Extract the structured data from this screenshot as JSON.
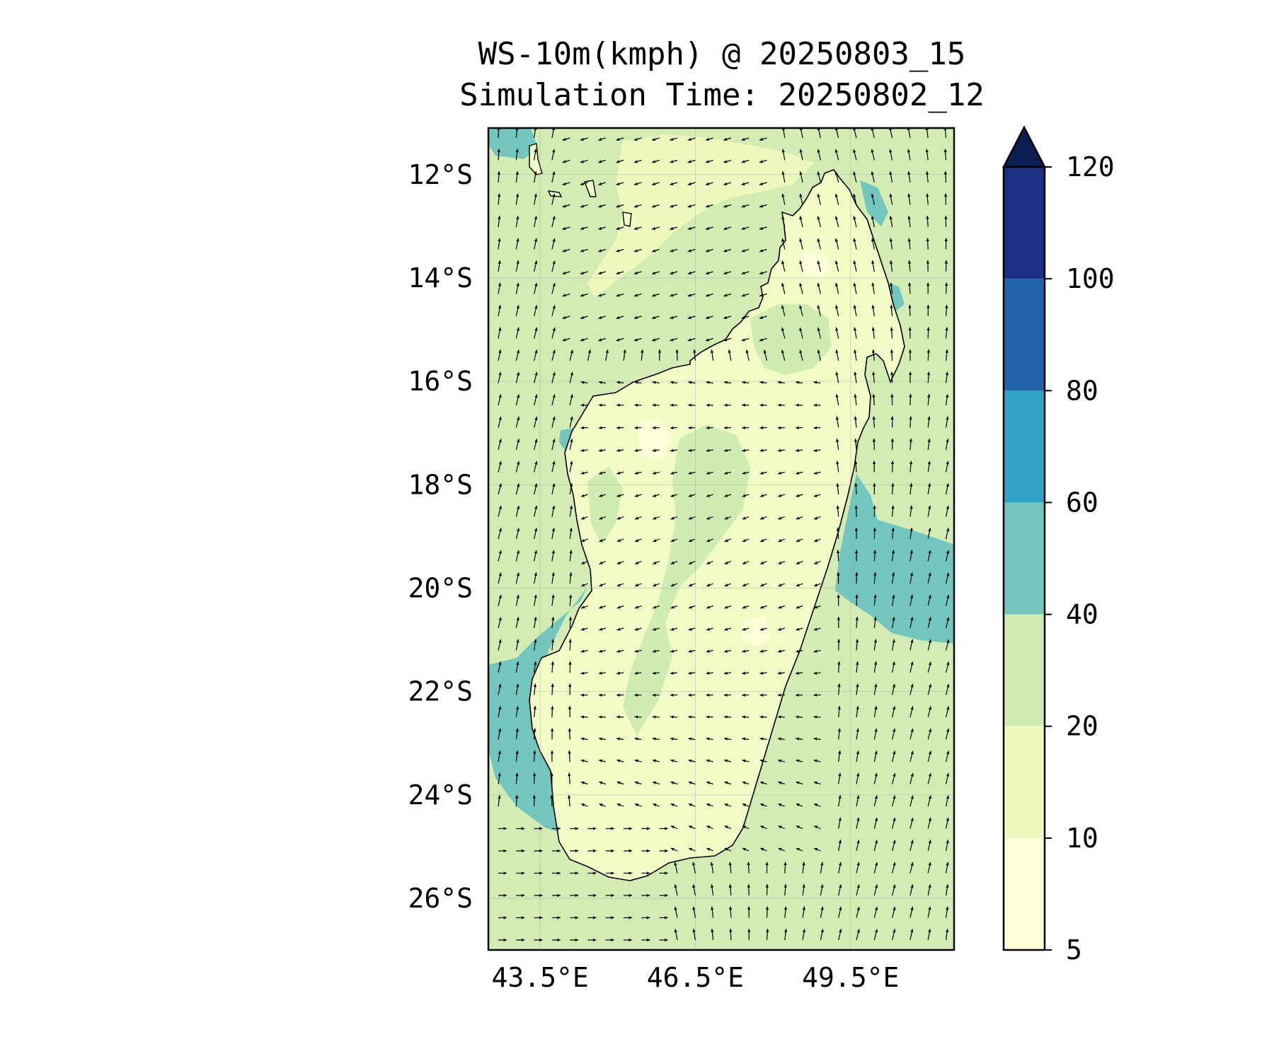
{
  "title": {
    "line1": "WS-10m(kmph) @ 20250803_15",
    "line2": "Simulation Time: 20250802_12"
  },
  "map": {
    "lon_range": [
      42.5,
      51.5
    ],
    "lat_range": [
      -27,
      -11.1
    ],
    "lon_ticks": [
      {
        "value": 43.5,
        "label": "43.5°E"
      },
      {
        "value": 46.5,
        "label": "46.5°E"
      },
      {
        "value": 49.5,
        "label": "49.5°E"
      }
    ],
    "lat_ticks": [
      {
        "value": -12,
        "label": "12°S"
      },
      {
        "value": -14,
        "label": "14°S"
      },
      {
        "value": -16,
        "label": "16°S"
      },
      {
        "value": -18,
        "label": "18°S"
      },
      {
        "value": -20,
        "label": "20°S"
      },
      {
        "value": -22,
        "label": "22°S"
      },
      {
        "value": -24,
        "label": "24°S"
      },
      {
        "value": -26,
        "label": "26°S"
      }
    ],
    "ocean_fill": "#d2ecb4",
    "land_fill": "#f2fac6",
    "coast_color": "#000000",
    "wind_vectors": "black quiver arrows, predominantly southerly flow along the coasts"
  },
  "colorbar": {
    "levels": [
      {
        "value": 5,
        "label": "5"
      },
      {
        "value": 10,
        "label": "10"
      },
      {
        "value": 20,
        "label": "20"
      },
      {
        "value": 40,
        "label": "40"
      },
      {
        "value": 60,
        "label": "60"
      },
      {
        "value": 80,
        "label": "80"
      },
      {
        "value": 100,
        "label": "100"
      },
      {
        "value": 120,
        "label": "120"
      }
    ],
    "colors": [
      "#fdfed8",
      "#eff9bd",
      "#cfecb3",
      "#72c6bd",
      "#2fa2c5",
      "#2563a8",
      "#1d2f80"
    ],
    "extend_color": "#0c1f52"
  }
}
